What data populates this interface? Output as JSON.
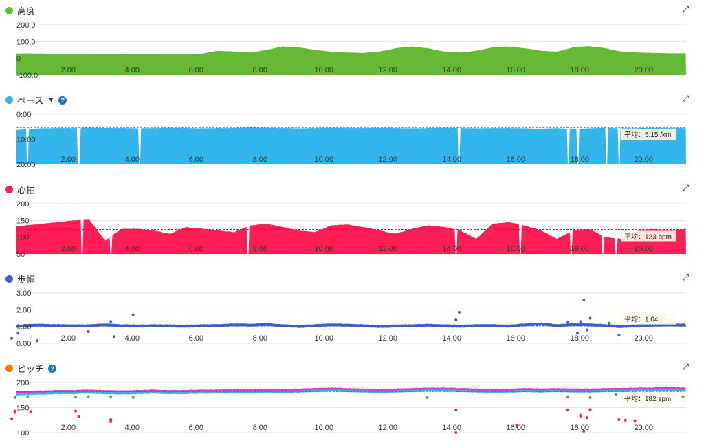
{
  "charts": [
    {
      "id": "elev",
      "title": "高度",
      "color": "#66b933",
      "help": false,
      "dropdown": false,
      "type": "area",
      "ylim": [
        -100,
        200
      ],
      "yticks": [
        "200.0",
        "100.0",
        "0",
        "-100.0"
      ],
      "ytickvals": [
        200,
        100,
        0,
        -100
      ],
      "values": [
        28,
        29,
        28,
        27,
        26,
        26,
        25,
        25,
        24,
        25,
        26,
        27,
        28,
        45,
        40,
        35,
        50,
        70,
        65,
        50,
        40,
        35,
        32,
        40,
        60,
        70,
        60,
        40,
        35,
        45,
        65,
        70,
        60,
        45,
        40,
        65,
        72,
        60,
        40,
        35,
        32,
        30,
        30
      ]
    },
    {
      "id": "pace",
      "title": "ペース",
      "color": "#33b4ea",
      "help": true,
      "dropdown": true,
      "type": "area",
      "inverted": true,
      "ylim": [
        0,
        20
      ],
      "yticks": [
        "0:00",
        "10:00",
        "20:00"
      ],
      "ytickvals": [
        0,
        10,
        20
      ],
      "avg": 5.25,
      "avg_label": "平均：5:15 /km",
      "values": [
        6.5,
        6,
        5.6,
        5.5,
        5.5,
        5.4,
        5.5,
        5.5,
        5.6,
        5.5,
        5.4,
        5.5,
        5.6,
        5.5,
        5.5,
        5.3,
        5.4,
        5.5,
        5.6,
        5.5,
        5.4,
        5.5,
        5.5,
        5.4,
        5.5,
        5.6,
        5.5,
        5.4,
        5.5,
        5.6,
        5.5,
        5.5,
        5.6,
        5.8,
        5.5,
        6,
        5.6,
        5.4,
        5.6,
        5.5,
        5.4,
        5.5,
        5.5
      ],
      "gaps": [
        0.6,
        2.2,
        4.1,
        14.1,
        17.5,
        17.8,
        18.7,
        19.1
      ]
    },
    {
      "id": "hr",
      "title": "心拍",
      "color": "#ff1f55",
      "help": false,
      "dropdown": false,
      "type": "area",
      "ylim": [
        50,
        200
      ],
      "yticks": [
        "200",
        "150",
        "100",
        "50"
      ],
      "ytickvals": [
        200,
        150,
        100,
        50
      ],
      "avg": 123,
      "avg_label": "平均：123 bpm",
      "values": [
        130,
        135,
        140,
        145,
        150,
        152,
        90,
        125,
        125,
        120,
        110,
        130,
        125,
        120,
        115,
        135,
        140,
        130,
        120,
        115,
        135,
        138,
        130,
        120,
        110,
        125,
        135,
        130,
        120,
        95,
        140,
        145,
        135,
        120,
        95,
        120,
        125,
        100,
        95,
        120,
        125,
        120,
        125
      ],
      "gaps": [
        2.3,
        3.2,
        7.5,
        14.0,
        16.0,
        17.6,
        18.6,
        19.0
      ]
    },
    {
      "id": "stride",
      "title": "歩幅",
      "color": "#3a5fd8",
      "help": false,
      "dropdown": false,
      "type": "scatter-line",
      "ylim": [
        0,
        3
      ],
      "yticks": [
        "3.00",
        "2.00",
        "1.00",
        "0.00"
      ],
      "ytickvals": [
        3,
        2,
        1,
        0
      ],
      "avg": 1.04,
      "avg_label": "平均：1.04 m",
      "values": [
        0.95,
        1.05,
        1.08,
        1.06,
        1.04,
        1.05,
        1.1,
        1.05,
        1.03,
        1.05,
        1.04,
        1.02,
        1.05,
        1.05,
        1.1,
        1.08,
        1.12,
        1.05,
        1.0,
        1.05,
        1.1,
        1.08,
        1.05,
        1.0,
        1.03,
        1.05,
        1.08,
        1.05,
        1.02,
        1.05,
        1.06,
        1.02,
        1.1,
        1.15,
        1.05,
        1.12,
        1.1,
        1.05,
        1.0,
        1.05,
        1.08,
        1.1,
        1.08
      ],
      "outliers": [
        [
          0.1,
          0.3
        ],
        [
          0.3,
          0.6
        ],
        [
          0.9,
          0.15
        ],
        [
          2.5,
          0.7
        ],
        [
          3.2,
          1.3
        ],
        [
          3.3,
          0.4
        ],
        [
          3.9,
          1.7
        ],
        [
          14.1,
          1.85
        ],
        [
          14.0,
          1.4
        ],
        [
          17.5,
          1.25
        ],
        [
          17.9,
          1.3
        ],
        [
          18.0,
          2.6
        ],
        [
          18.1,
          0.8
        ],
        [
          18.2,
          1.5
        ],
        [
          17.8,
          0.6
        ],
        [
          18.8,
          1.2
        ],
        [
          19.1,
          0.5
        ],
        [
          19.5,
          1.35
        ],
        [
          20.4,
          1.3
        ]
      ]
    },
    {
      "id": "cadence",
      "title": "ピッチ",
      "color": "#f07d00",
      "help": true,
      "dropdown": false,
      "type": "scatter-line",
      "ylim": [
        100,
        200
      ],
      "yticks": [
        "200",
        "150",
        "100"
      ],
      "ytickvals": [
        200,
        150,
        100
      ],
      "avg": 182,
      "avg_label": "平均：182 spm",
      "values": [
        178,
        179,
        180,
        181,
        181,
        182,
        181,
        180,
        181,
        182,
        181,
        181,
        182,
        182,
        183,
        183,
        184,
        183,
        184,
        185,
        186,
        185,
        184,
        183,
        184,
        185,
        186,
        186,
        185,
        184,
        183,
        184,
        185,
        184,
        185,
        184,
        184,
        185,
        185,
        186,
        186,
        187,
        186
      ],
      "outliers_green": [
        [
          0.2,
          170
        ],
        [
          0.6,
          172
        ],
        [
          2.1,
          171
        ],
        [
          2.5,
          172
        ],
        [
          3.2,
          172
        ],
        [
          3.9,
          170
        ],
        [
          13.1,
          170
        ],
        [
          17.5,
          172
        ],
        [
          18.2,
          170
        ],
        [
          19.0,
          176
        ],
        [
          21.1,
          172
        ]
      ],
      "outliers_red": [
        [
          0.1,
          128
        ],
        [
          0.2,
          140
        ],
        [
          0.2,
          143
        ],
        [
          0.7,
          142
        ],
        [
          2.1,
          143
        ],
        [
          2.2,
          132
        ],
        [
          3.2,
          126
        ],
        [
          3.2,
          122
        ],
        [
          14.0,
          145
        ],
        [
          14.0,
          100
        ],
        [
          15.9,
          115
        ],
        [
          15.9,
          112
        ],
        [
          17.5,
          145
        ],
        [
          18.2,
          146
        ],
        [
          17.9,
          133
        ],
        [
          18.2,
          145
        ],
        [
          18.0,
          103
        ],
        [
          17.9,
          135
        ],
        [
          18.1,
          130
        ],
        [
          19.1,
          126
        ],
        [
          19.3,
          125
        ],
        [
          19.6,
          124
        ]
      ]
    }
  ],
  "xaxis": {
    "ticks": [
      "2.00",
      "4.00",
      "6.00",
      "8.00",
      "10.00",
      "12.00",
      "14.00",
      "16.00",
      "18.00",
      "20.00"
    ],
    "tickvals": [
      2,
      4,
      6,
      8,
      10,
      12,
      14,
      16,
      18,
      20
    ],
    "xlim": [
      0.25,
      21.2
    ]
  },
  "expand_icon": "↗↙"
}
